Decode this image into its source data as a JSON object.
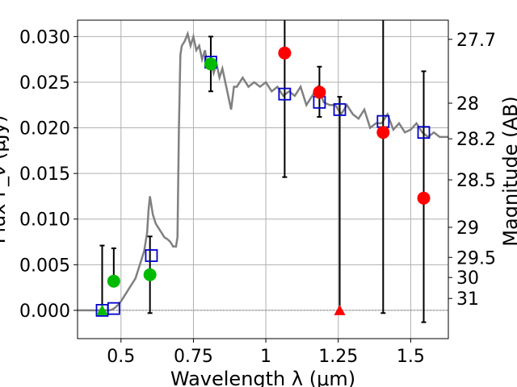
{
  "chart_data": {
    "type": "scatter",
    "xlabel": "Wavelength  λ (μm)",
    "ylabel": "Flux F_ν (μJy)",
    "ylabel_right": "Magnitude (AB)",
    "xlim": [
      0.35,
      1.63
    ],
    "ylim": [
      -0.0031,
      0.0318
    ],
    "grid": true,
    "x_ticks": [
      0.5,
      0.75,
      1.0,
      1.25,
      1.5
    ],
    "x_tick_labels": [
      "0.5",
      "0.75",
      "1",
      "1.25",
      "1.5"
    ],
    "y_ticks": [
      0.0,
      0.005,
      0.01,
      0.015,
      0.02,
      0.025,
      0.03
    ],
    "y_tick_labels": [
      "0.000",
      "0.005",
      "0.010",
      "0.015",
      "0.020",
      "0.025",
      "0.030"
    ],
    "right_ticks": [
      {
        "label": "27.7",
        "flux": 0.0297
      },
      {
        "label": "28",
        "flux": 0.0227
      },
      {
        "label": "28.2",
        "flux": 0.0188
      },
      {
        "label": "28.5",
        "flux": 0.0143
      },
      {
        "label": "29",
        "flux": 0.0091
      },
      {
        "label": "29.5",
        "flux": 0.0058
      },
      {
        "label": "30",
        "flux": 0.0036
      },
      {
        "label": "31",
        "flux": 0.0013
      }
    ],
    "colors": {
      "model": "#808080",
      "model_points": "#0000cc",
      "detections": "#00bb00",
      "nircam": "#ff0000",
      "errorbar": "#000000",
      "grid": "#b0b0b0"
    },
    "series": [
      {
        "kind": "line",
        "x": [
          0.35,
          0.44,
          0.45,
          0.46,
          0.47,
          0.48,
          0.49,
          0.5,
          0.51,
          0.52,
          0.53,
          0.54,
          0.55,
          0.56,
          0.57,
          0.58,
          0.59,
          0.595,
          0.6,
          0.605,
          0.61,
          0.62,
          0.63,
          0.64,
          0.65,
          0.66,
          0.67,
          0.68,
          0.69,
          0.695,
          0.7,
          0.705,
          0.71,
          0.72,
          0.73,
          0.74,
          0.75,
          0.76,
          0.77,
          0.78,
          0.79,
          0.8,
          0.81,
          0.82,
          0.83,
          0.84,
          0.85,
          0.86,
          0.87,
          0.88,
          0.89,
          0.9,
          0.92,
          0.94,
          0.96,
          0.98,
          1.0,
          1.02,
          1.04,
          1.06,
          1.08,
          1.1,
          1.12,
          1.14,
          1.16,
          1.18,
          1.2,
          1.22,
          1.24,
          1.26,
          1.28,
          1.3,
          1.32,
          1.34,
          1.36,
          1.38,
          1.4,
          1.42,
          1.44,
          1.46,
          1.48,
          1.5,
          1.52,
          1.54,
          1.56,
          1.58,
          1.6,
          1.63
        ],
        "y": [
          0.0,
          0.0,
          0.0,
          0.0,
          0.0001,
          0.0003,
          0.0006,
          0.001,
          0.0015,
          0.002,
          0.0025,
          0.003,
          0.0035,
          0.0045,
          0.0055,
          0.0065,
          0.0085,
          0.011,
          0.0125,
          0.0115,
          0.0105,
          0.0095,
          0.009,
          0.0085,
          0.008,
          0.0078,
          0.0075,
          0.007,
          0.007,
          0.008,
          0.02,
          0.028,
          0.029,
          0.0295,
          0.0303,
          0.029,
          0.03,
          0.0285,
          0.029,
          0.0275,
          0.0285,
          0.0265,
          0.0275,
          0.026,
          0.027,
          0.0255,
          0.0265,
          0.025,
          0.0235,
          0.022,
          0.0245,
          0.0245,
          0.0255,
          0.0245,
          0.025,
          0.0245,
          0.025,
          0.024,
          0.0245,
          0.0235,
          0.024,
          0.0235,
          0.0245,
          0.0225,
          0.0235,
          0.0245,
          0.0228,
          0.0225,
          0.0225,
          0.0215,
          0.0225,
          0.0215,
          0.021,
          0.022,
          0.02,
          0.0205,
          0.0205,
          0.0215,
          0.0198,
          0.0205,
          0.0195,
          0.0198,
          0.0205,
          0.0195,
          0.019,
          0.0195,
          0.019,
          0.019
        ]
      },
      {
        "kind": "model-photometry",
        "marker": "square",
        "x": [
          0.435,
          0.475,
          0.605,
          0.81,
          1.065,
          1.185,
          1.255,
          1.405,
          1.545
        ],
        "y": [
          0.0,
          0.0002,
          0.006,
          0.0272,
          0.0237,
          0.0228,
          0.022,
          0.0207,
          0.0195
        ]
      },
      {
        "kind": "detections",
        "marker": "circle",
        "x": [
          0.435,
          0.475,
          0.6,
          0.81
        ],
        "y": [
          0.0,
          0.0032,
          0.0039,
          0.027
        ],
        "yerr_low": [
          0.0,
          0.0,
          0.0042,
          0.003
        ],
        "yerr_high": [
          0.0071,
          0.0036,
          0.0042,
          0.003
        ]
      },
      {
        "kind": "nircam",
        "marker": "circle",
        "x": [
          1.065,
          1.185,
          1.255,
          1.405,
          1.545
        ],
        "y": [
          0.0282,
          0.0239,
          0.0,
          0.0195,
          0.0123
        ],
        "yerr_low": [
          0.0136,
          0.0027,
          0.0,
          0.0198,
          0.0136
        ],
        "yerr_high": [
          0.01,
          0.0028,
          0.0234,
          0.014,
          0.0139
        ]
      }
    ],
    "upper_limit_markers": [
      {
        "x": 0.435,
        "y": 0.0,
        "color": "#00bb00"
      },
      {
        "x": 1.255,
        "y": 0.0,
        "color": "#ff0000"
      }
    ]
  }
}
